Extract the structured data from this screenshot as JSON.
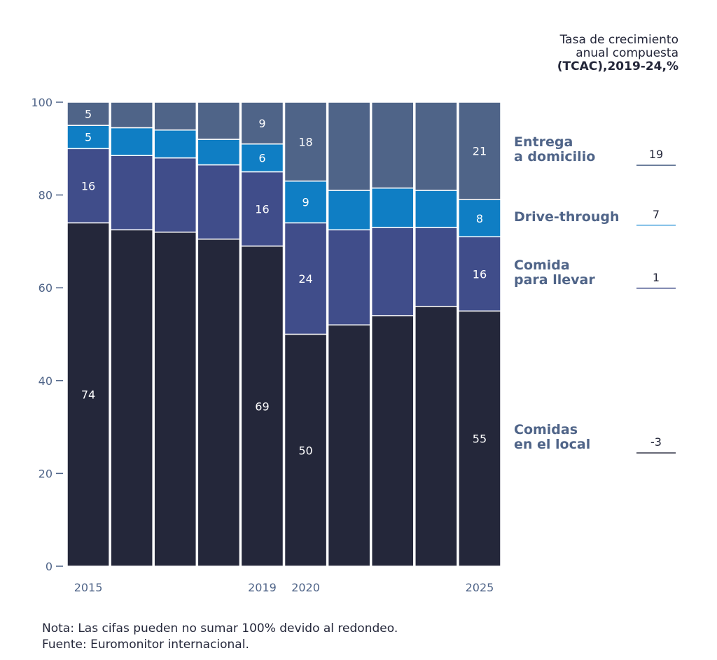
{
  "chart_data": {
    "type": "bar",
    "stacked": true,
    "categories": [
      "2015",
      "",
      "",
      "",
      "2019",
      "2020",
      "",
      "",
      "",
      "2025"
    ],
    "ylim": [
      0,
      100
    ],
    "yticks": [
      0,
      20,
      40,
      60,
      80,
      100
    ],
    "grid": false,
    "series": [
      {
        "name": "Comidas en el local",
        "label_lines": [
          "Comidas",
          "en el local"
        ],
        "color": "#24273a",
        "cagr": "-3",
        "underline": "#24273a",
        "values": [
          74,
          72.5,
          72,
          70.5,
          69,
          50,
          52,
          54,
          56,
          55
        ],
        "labels": [
          "74",
          "",
          "",
          "",
          "69",
          "50",
          "",
          "",
          "",
          "55"
        ]
      },
      {
        "name": "Comida para llevar",
        "label_lines": [
          "Comida",
          "para llevar"
        ],
        "color": "#404d8a",
        "cagr": "1",
        "underline": "#404d8a",
        "values": [
          16,
          16,
          16,
          16,
          16,
          24,
          20.5,
          19,
          17,
          16
        ],
        "labels": [
          "16",
          "",
          "",
          "",
          "16",
          "24",
          "",
          "",
          "",
          "16"
        ]
      },
      {
        "name": "Drive-through",
        "label_lines": [
          "Drive-through"
        ],
        "color": "#0f7ec4",
        "cagr": "7",
        "underline": "#4aa3dc",
        "values": [
          5,
          6,
          6,
          5.5,
          6,
          9,
          8.5,
          8.5,
          8,
          8
        ],
        "labels": [
          "5",
          "",
          "",
          "",
          "6",
          "9",
          "",
          "",
          "",
          "8"
        ]
      },
      {
        "name": "Entrega a domicilio",
        "label_lines": [
          "Entrega",
          "a domicilio"
        ],
        "color": "#4f6488",
        "cagr": "19",
        "underline": "#4f6488",
        "values": [
          5,
          5.5,
          6,
          8,
          9,
          18,
          19,
          18.5,
          19,
          21
        ],
        "labels": [
          "5",
          "",
          "",
          "",
          "9",
          "18",
          "",
          "",
          "",
          "21"
        ]
      }
    ],
    "legend_header": {
      "line1": "Tasa de crecimiento",
      "line2": "anual compuesta",
      "line3": "(TCAC),2019-24,%"
    }
  },
  "notes": {
    "nota": "Nota: Las cifas pueden no sumar 100% devido al redondeo.",
    "fuente": "Fuente: Euromonitor internacional."
  }
}
